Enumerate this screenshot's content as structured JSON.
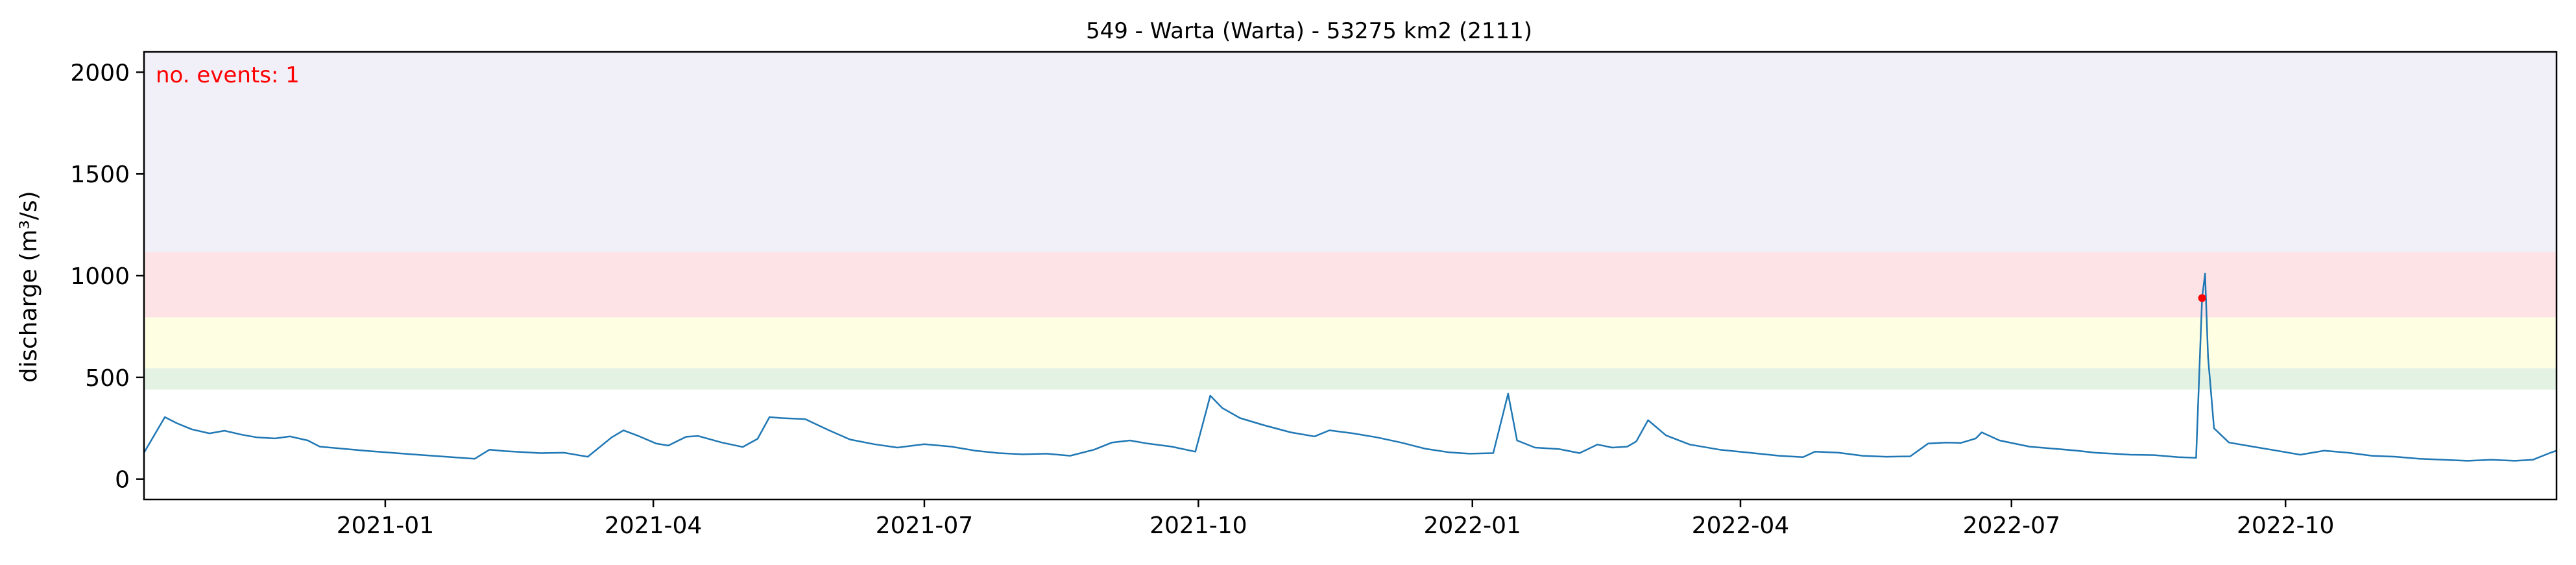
{
  "chart_data": {
    "type": "line",
    "title": "549 - Warta (Warta) - 53275 km2 (2111)",
    "xlabel": "",
    "ylabel": "discharge (m³/s)",
    "xlim": [
      "2020-10-12",
      "2022-12-31"
    ],
    "ylim": [
      -100,
      2100
    ],
    "yticks": [
      0,
      500,
      1000,
      1500,
      2000
    ],
    "xticks": [
      {
        "date": "2021-01-01",
        "label": "2021-01"
      },
      {
        "date": "2021-04-01",
        "label": "2021-04"
      },
      {
        "date": "2021-07-01",
        "label": "2021-07"
      },
      {
        "date": "2021-10-01",
        "label": "2021-10"
      },
      {
        "date": "2022-01-01",
        "label": "2022-01"
      },
      {
        "date": "2022-04-01",
        "label": "2022-04"
      },
      {
        "date": "2022-07-01",
        "label": "2022-07"
      },
      {
        "date": "2022-10-01",
        "label": "2022-10"
      }
    ],
    "grid": false,
    "bands": [
      {
        "from": 440,
        "to": 545,
        "color": "#e3f2e3"
      },
      {
        "from": 545,
        "to": 795,
        "color": "#fefee3"
      },
      {
        "from": 795,
        "to": 1115,
        "color": "#fde3e5"
      },
      {
        "from": 1115,
        "to": 2100,
        "color": "#f1eff8"
      }
    ],
    "series": [
      {
        "color": "#1f77b4",
        "points": [
          [
            "2020-10-12",
            130
          ],
          [
            "2020-10-16",
            230
          ],
          [
            "2020-10-19",
            305
          ],
          [
            "2020-10-23",
            275
          ],
          [
            "2020-10-28",
            245
          ],
          [
            "2020-11-03",
            225
          ],
          [
            "2020-11-08",
            238
          ],
          [
            "2020-11-14",
            218
          ],
          [
            "2020-11-19",
            205
          ],
          [
            "2020-11-25",
            200
          ],
          [
            "2020-11-30",
            210
          ],
          [
            "2020-12-06",
            190
          ],
          [
            "2020-12-10",
            160
          ],
          [
            "2020-12-25",
            140
          ],
          [
            "2021-01-10",
            122
          ],
          [
            "2021-01-31",
            100
          ],
          [
            "2021-02-05",
            145
          ],
          [
            "2021-02-10",
            138
          ],
          [
            "2021-02-22",
            128
          ],
          [
            "2021-03-02",
            130
          ],
          [
            "2021-03-10",
            110
          ],
          [
            "2021-03-18",
            205
          ],
          [
            "2021-03-22",
            240
          ],
          [
            "2021-03-27",
            212
          ],
          [
            "2021-04-02",
            175
          ],
          [
            "2021-04-06",
            165
          ],
          [
            "2021-04-12",
            208
          ],
          [
            "2021-04-16",
            212
          ],
          [
            "2021-04-24",
            180
          ],
          [
            "2021-05-01",
            158
          ],
          [
            "2021-05-06",
            198
          ],
          [
            "2021-05-10",
            305
          ],
          [
            "2021-05-14",
            300
          ],
          [
            "2021-05-22",
            295
          ],
          [
            "2021-05-30",
            240
          ],
          [
            "2021-06-06",
            195
          ],
          [
            "2021-06-14",
            172
          ],
          [
            "2021-06-22",
            155
          ],
          [
            "2021-07-01",
            172
          ],
          [
            "2021-07-10",
            160
          ],
          [
            "2021-07-18",
            140
          ],
          [
            "2021-07-26",
            128
          ],
          [
            "2021-08-03",
            122
          ],
          [
            "2021-08-11",
            125
          ],
          [
            "2021-08-19",
            115
          ],
          [
            "2021-08-27",
            145
          ],
          [
            "2021-09-02",
            180
          ],
          [
            "2021-09-08",
            190
          ],
          [
            "2021-09-14",
            175
          ],
          [
            "2021-09-22",
            160
          ],
          [
            "2021-09-30",
            135
          ],
          [
            "2021-10-05",
            410
          ],
          [
            "2021-10-09",
            350
          ],
          [
            "2021-10-15",
            300
          ],
          [
            "2021-10-23",
            265
          ],
          [
            "2021-11-01",
            230
          ],
          [
            "2021-11-09",
            210
          ],
          [
            "2021-11-14",
            240
          ],
          [
            "2021-11-22",
            225
          ],
          [
            "2021-11-30",
            205
          ],
          [
            "2021-12-08",
            180
          ],
          [
            "2021-12-16",
            150
          ],
          [
            "2021-12-24",
            132
          ],
          [
            "2021-12-31",
            125
          ],
          [
            "2022-01-08",
            128
          ],
          [
            "2022-01-13",
            420
          ],
          [
            "2022-01-16",
            190
          ],
          [
            "2022-01-22",
            155
          ],
          [
            "2022-01-30",
            148
          ],
          [
            "2022-02-06",
            128
          ],
          [
            "2022-02-12",
            170
          ],
          [
            "2022-02-17",
            155
          ],
          [
            "2022-02-22",
            160
          ],
          [
            "2022-02-25",
            185
          ],
          [
            "2022-03-01",
            290
          ],
          [
            "2022-03-07",
            215
          ],
          [
            "2022-03-15",
            170
          ],
          [
            "2022-03-25",
            145
          ],
          [
            "2022-04-04",
            130
          ],
          [
            "2022-04-14",
            115
          ],
          [
            "2022-04-22",
            108
          ],
          [
            "2022-04-26",
            135
          ],
          [
            "2022-05-04",
            130
          ],
          [
            "2022-05-12",
            115
          ],
          [
            "2022-05-20",
            110
          ],
          [
            "2022-05-28",
            112
          ],
          [
            "2022-06-03",
            175
          ],
          [
            "2022-06-09",
            180
          ],
          [
            "2022-06-14",
            178
          ],
          [
            "2022-06-19",
            200
          ],
          [
            "2022-06-21",
            230
          ],
          [
            "2022-06-27",
            190
          ],
          [
            "2022-07-07",
            160
          ],
          [
            "2022-07-15",
            150
          ],
          [
            "2022-07-23",
            140
          ],
          [
            "2022-07-29",
            130
          ],
          [
            "2022-08-04",
            125
          ],
          [
            "2022-08-10",
            120
          ],
          [
            "2022-08-18",
            118
          ],
          [
            "2022-08-26",
            108
          ],
          [
            "2022-09-01",
            105
          ],
          [
            "2022-09-03",
            890
          ],
          [
            "2022-09-04",
            1010
          ],
          [
            "2022-09-05",
            600
          ],
          [
            "2022-09-07",
            250
          ],
          [
            "2022-09-12",
            180
          ],
          [
            "2022-09-20",
            160
          ],
          [
            "2022-09-28",
            140
          ],
          [
            "2022-10-06",
            120
          ],
          [
            "2022-10-14",
            140
          ],
          [
            "2022-10-22",
            130
          ],
          [
            "2022-10-30",
            115
          ],
          [
            "2022-11-07",
            110
          ],
          [
            "2022-11-15",
            100
          ],
          [
            "2022-11-23",
            95
          ],
          [
            "2022-12-01",
            90
          ],
          [
            "2022-12-09",
            95
          ],
          [
            "2022-12-17",
            90
          ],
          [
            "2022-12-23",
            95
          ],
          [
            "2022-12-29",
            130
          ],
          [
            "2022-12-31",
            140
          ]
        ]
      }
    ],
    "events": [
      {
        "date": "2022-09-03",
        "value": 890,
        "color": "#ff0000"
      }
    ],
    "annotations": [
      {
        "text": "no. events: 1",
        "position": "top-left",
        "color": "#ff0000"
      }
    ]
  }
}
